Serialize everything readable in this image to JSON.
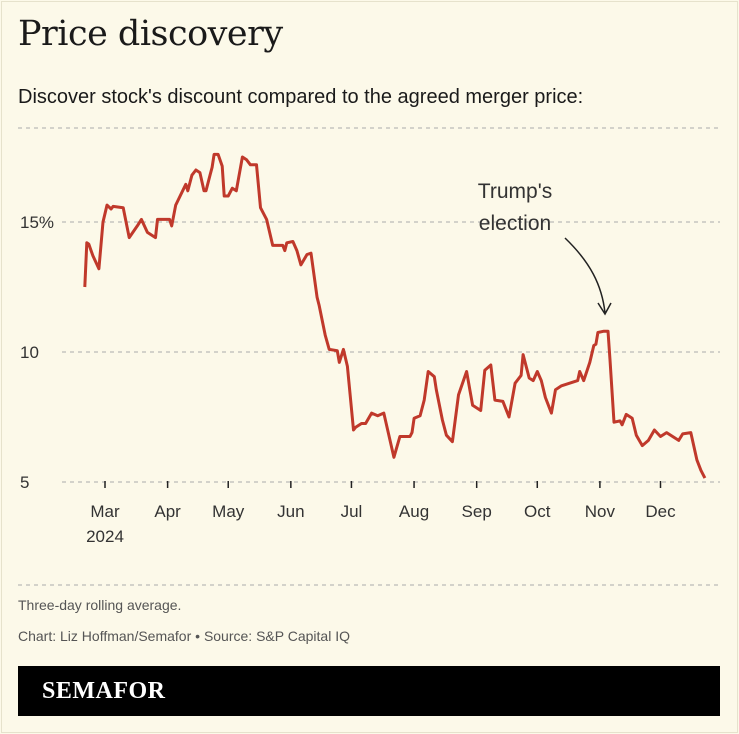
{
  "header": {
    "title": "Price discovery",
    "subtitle": "Discover stock's discount compared to the agreed merger price:"
  },
  "chart_data": {
    "type": "line",
    "title": "Price discovery",
    "subtitle": "Discover stock's discount compared to the agreed merger price:",
    "xlabel": "",
    "ylabel": "",
    "y_ticks": [
      {
        "value": 5,
        "label": "5"
      },
      {
        "value": 10,
        "label": "10"
      },
      {
        "value": 15,
        "label": "15%"
      }
    ],
    "ylim": [
      5,
      18.6
    ],
    "x_ticks": [
      {
        "date": "2024-03-01",
        "label": "Mar",
        "sublabel": "2024"
      },
      {
        "date": "2024-04-01",
        "label": "Apr"
      },
      {
        "date": "2024-05-01",
        "label": "May"
      },
      {
        "date": "2024-06-01",
        "label": "Jun"
      },
      {
        "date": "2024-07-01",
        "label": "Jul"
      },
      {
        "date": "2024-08-01",
        "label": "Aug"
      },
      {
        "date": "2024-09-01",
        "label": "Sep"
      },
      {
        "date": "2024-10-01",
        "label": "Oct"
      },
      {
        "date": "2024-11-01",
        "label": "Nov"
      },
      {
        "date": "2024-12-01",
        "label": "Dec"
      }
    ],
    "grid": true,
    "line_color": "#c0392b",
    "annotation": {
      "text_lines": [
        "Trump's",
        "election"
      ],
      "date": "2024-11-05"
    },
    "series": [
      {
        "points": [
          [
            "2024-02-20",
            12.5
          ],
          [
            "2024-02-21",
            14.2
          ],
          [
            "2024-02-22",
            14.15
          ],
          [
            "2024-02-24",
            13.7
          ],
          [
            "2024-02-27",
            13.2
          ],
          [
            "2024-02-29",
            15.0
          ],
          [
            "2024-03-02",
            15.65
          ],
          [
            "2024-03-04",
            15.5
          ],
          [
            "2024-03-05",
            15.6
          ],
          [
            "2024-03-10",
            15.55
          ],
          [
            "2024-03-13",
            14.4
          ],
          [
            "2024-03-17",
            14.85
          ],
          [
            "2024-03-19",
            15.1
          ],
          [
            "2024-03-22",
            14.6
          ],
          [
            "2024-03-26",
            14.4
          ],
          [
            "2024-03-27",
            15.1
          ],
          [
            "2024-04-02",
            15.1
          ],
          [
            "2024-04-03",
            14.85
          ],
          [
            "2024-04-05",
            15.65
          ],
          [
            "2024-04-10",
            16.45
          ],
          [
            "2024-04-11",
            16.2
          ],
          [
            "2024-04-13",
            16.8
          ],
          [
            "2024-04-15",
            17.0
          ],
          [
            "2024-04-17",
            16.9
          ],
          [
            "2024-04-19",
            16.2
          ],
          [
            "2024-04-20",
            16.2
          ],
          [
            "2024-04-22",
            16.8
          ],
          [
            "2024-04-23",
            17.1
          ],
          [
            "2024-04-24",
            17.6
          ],
          [
            "2024-04-26",
            17.6
          ],
          [
            "2024-04-28",
            17.15
          ],
          [
            "2024-04-29",
            16.0
          ],
          [
            "2024-05-01",
            16.0
          ],
          [
            "2024-05-03",
            16.3
          ],
          [
            "2024-05-05",
            16.2
          ],
          [
            "2024-05-08",
            17.5
          ],
          [
            "2024-05-10",
            17.4
          ],
          [
            "2024-05-12",
            17.2
          ],
          [
            "2024-05-15",
            17.2
          ],
          [
            "2024-05-17",
            15.55
          ],
          [
            "2024-05-20",
            15.1
          ],
          [
            "2024-05-23",
            14.1
          ],
          [
            "2024-05-28",
            14.1
          ],
          [
            "2024-05-29",
            13.9
          ],
          [
            "2024-05-30",
            14.2
          ],
          [
            "2024-06-02",
            14.25
          ],
          [
            "2024-06-04",
            13.9
          ],
          [
            "2024-06-06",
            13.35
          ],
          [
            "2024-06-09",
            13.75
          ],
          [
            "2024-06-11",
            13.8
          ],
          [
            "2024-06-14",
            12.1
          ],
          [
            "2024-06-15",
            11.8
          ],
          [
            "2024-06-18",
            10.65
          ],
          [
            "2024-06-20",
            10.1
          ],
          [
            "2024-06-24",
            10.05
          ],
          [
            "2024-06-25",
            9.6
          ],
          [
            "2024-06-27",
            10.1
          ],
          [
            "2024-06-29",
            9.45
          ],
          [
            "2024-07-02",
            7.0
          ],
          [
            "2024-07-03",
            7.1
          ],
          [
            "2024-07-06",
            7.25
          ],
          [
            "2024-07-08",
            7.25
          ],
          [
            "2024-07-11",
            7.65
          ],
          [
            "2024-07-14",
            7.55
          ],
          [
            "2024-07-17",
            7.65
          ],
          [
            "2024-07-22",
            5.95
          ],
          [
            "2024-07-25",
            6.75
          ],
          [
            "2024-07-30",
            6.75
          ],
          [
            "2024-07-31",
            6.9
          ],
          [
            "2024-08-01",
            7.45
          ],
          [
            "2024-08-04",
            7.55
          ],
          [
            "2024-08-06",
            8.15
          ],
          [
            "2024-08-08",
            9.25
          ],
          [
            "2024-08-11",
            9.05
          ],
          [
            "2024-08-12",
            8.55
          ],
          [
            "2024-08-15",
            7.4
          ],
          [
            "2024-08-17",
            6.8
          ],
          [
            "2024-08-20",
            6.55
          ],
          [
            "2024-08-23",
            8.35
          ],
          [
            "2024-08-27",
            9.25
          ],
          [
            "2024-08-30",
            7.95
          ],
          [
            "2024-09-03",
            7.75
          ],
          [
            "2024-09-05",
            9.3
          ],
          [
            "2024-09-08",
            9.5
          ],
          [
            "2024-09-10",
            8.15
          ],
          [
            "2024-09-14",
            8.1
          ],
          [
            "2024-09-17",
            7.5
          ],
          [
            "2024-09-20",
            8.8
          ],
          [
            "2024-09-23",
            9.1
          ],
          [
            "2024-09-24",
            9.9
          ],
          [
            "2024-09-27",
            9.0
          ],
          [
            "2024-09-29",
            8.9
          ],
          [
            "2024-10-01",
            9.25
          ],
          [
            "2024-10-03",
            8.9
          ],
          [
            "2024-10-05",
            8.25
          ],
          [
            "2024-10-08",
            7.65
          ],
          [
            "2024-10-10",
            8.55
          ],
          [
            "2024-10-13",
            8.7
          ],
          [
            "2024-10-17",
            8.8
          ],
          [
            "2024-10-21",
            8.9
          ],
          [
            "2024-10-22",
            9.25
          ],
          [
            "2024-10-24",
            8.9
          ],
          [
            "2024-10-27",
            9.6
          ],
          [
            "2024-10-29",
            10.25
          ],
          [
            "2024-10-30",
            10.3
          ],
          [
            "2024-10-31",
            10.75
          ],
          [
            "2024-11-03",
            10.8
          ],
          [
            "2024-11-05",
            10.8
          ],
          [
            "2024-11-06",
            9.7
          ],
          [
            "2024-11-08",
            7.3
          ],
          [
            "2024-11-11",
            7.35
          ],
          [
            "2024-11-12",
            7.2
          ],
          [
            "2024-11-14",
            7.6
          ],
          [
            "2024-11-17",
            7.45
          ],
          [
            "2024-11-19",
            6.8
          ],
          [
            "2024-11-22",
            6.4
          ],
          [
            "2024-11-25",
            6.6
          ],
          [
            "2024-11-28",
            7.0
          ],
          [
            "2024-12-01",
            6.75
          ],
          [
            "2024-12-04",
            6.9
          ],
          [
            "2024-12-08",
            6.7
          ],
          [
            "2024-12-10",
            6.6
          ],
          [
            "2024-12-12",
            6.85
          ],
          [
            "2024-12-16",
            6.9
          ],
          [
            "2024-12-19",
            5.85
          ],
          [
            "2024-12-21",
            5.45
          ],
          [
            "2024-12-23",
            5.15
          ]
        ]
      }
    ]
  },
  "footer": {
    "note": "Three-day rolling average.",
    "credit": "Chart: Liz Hoffman/Semafor • Source: S&P Capital IQ",
    "brand": "SEMAFOR"
  }
}
